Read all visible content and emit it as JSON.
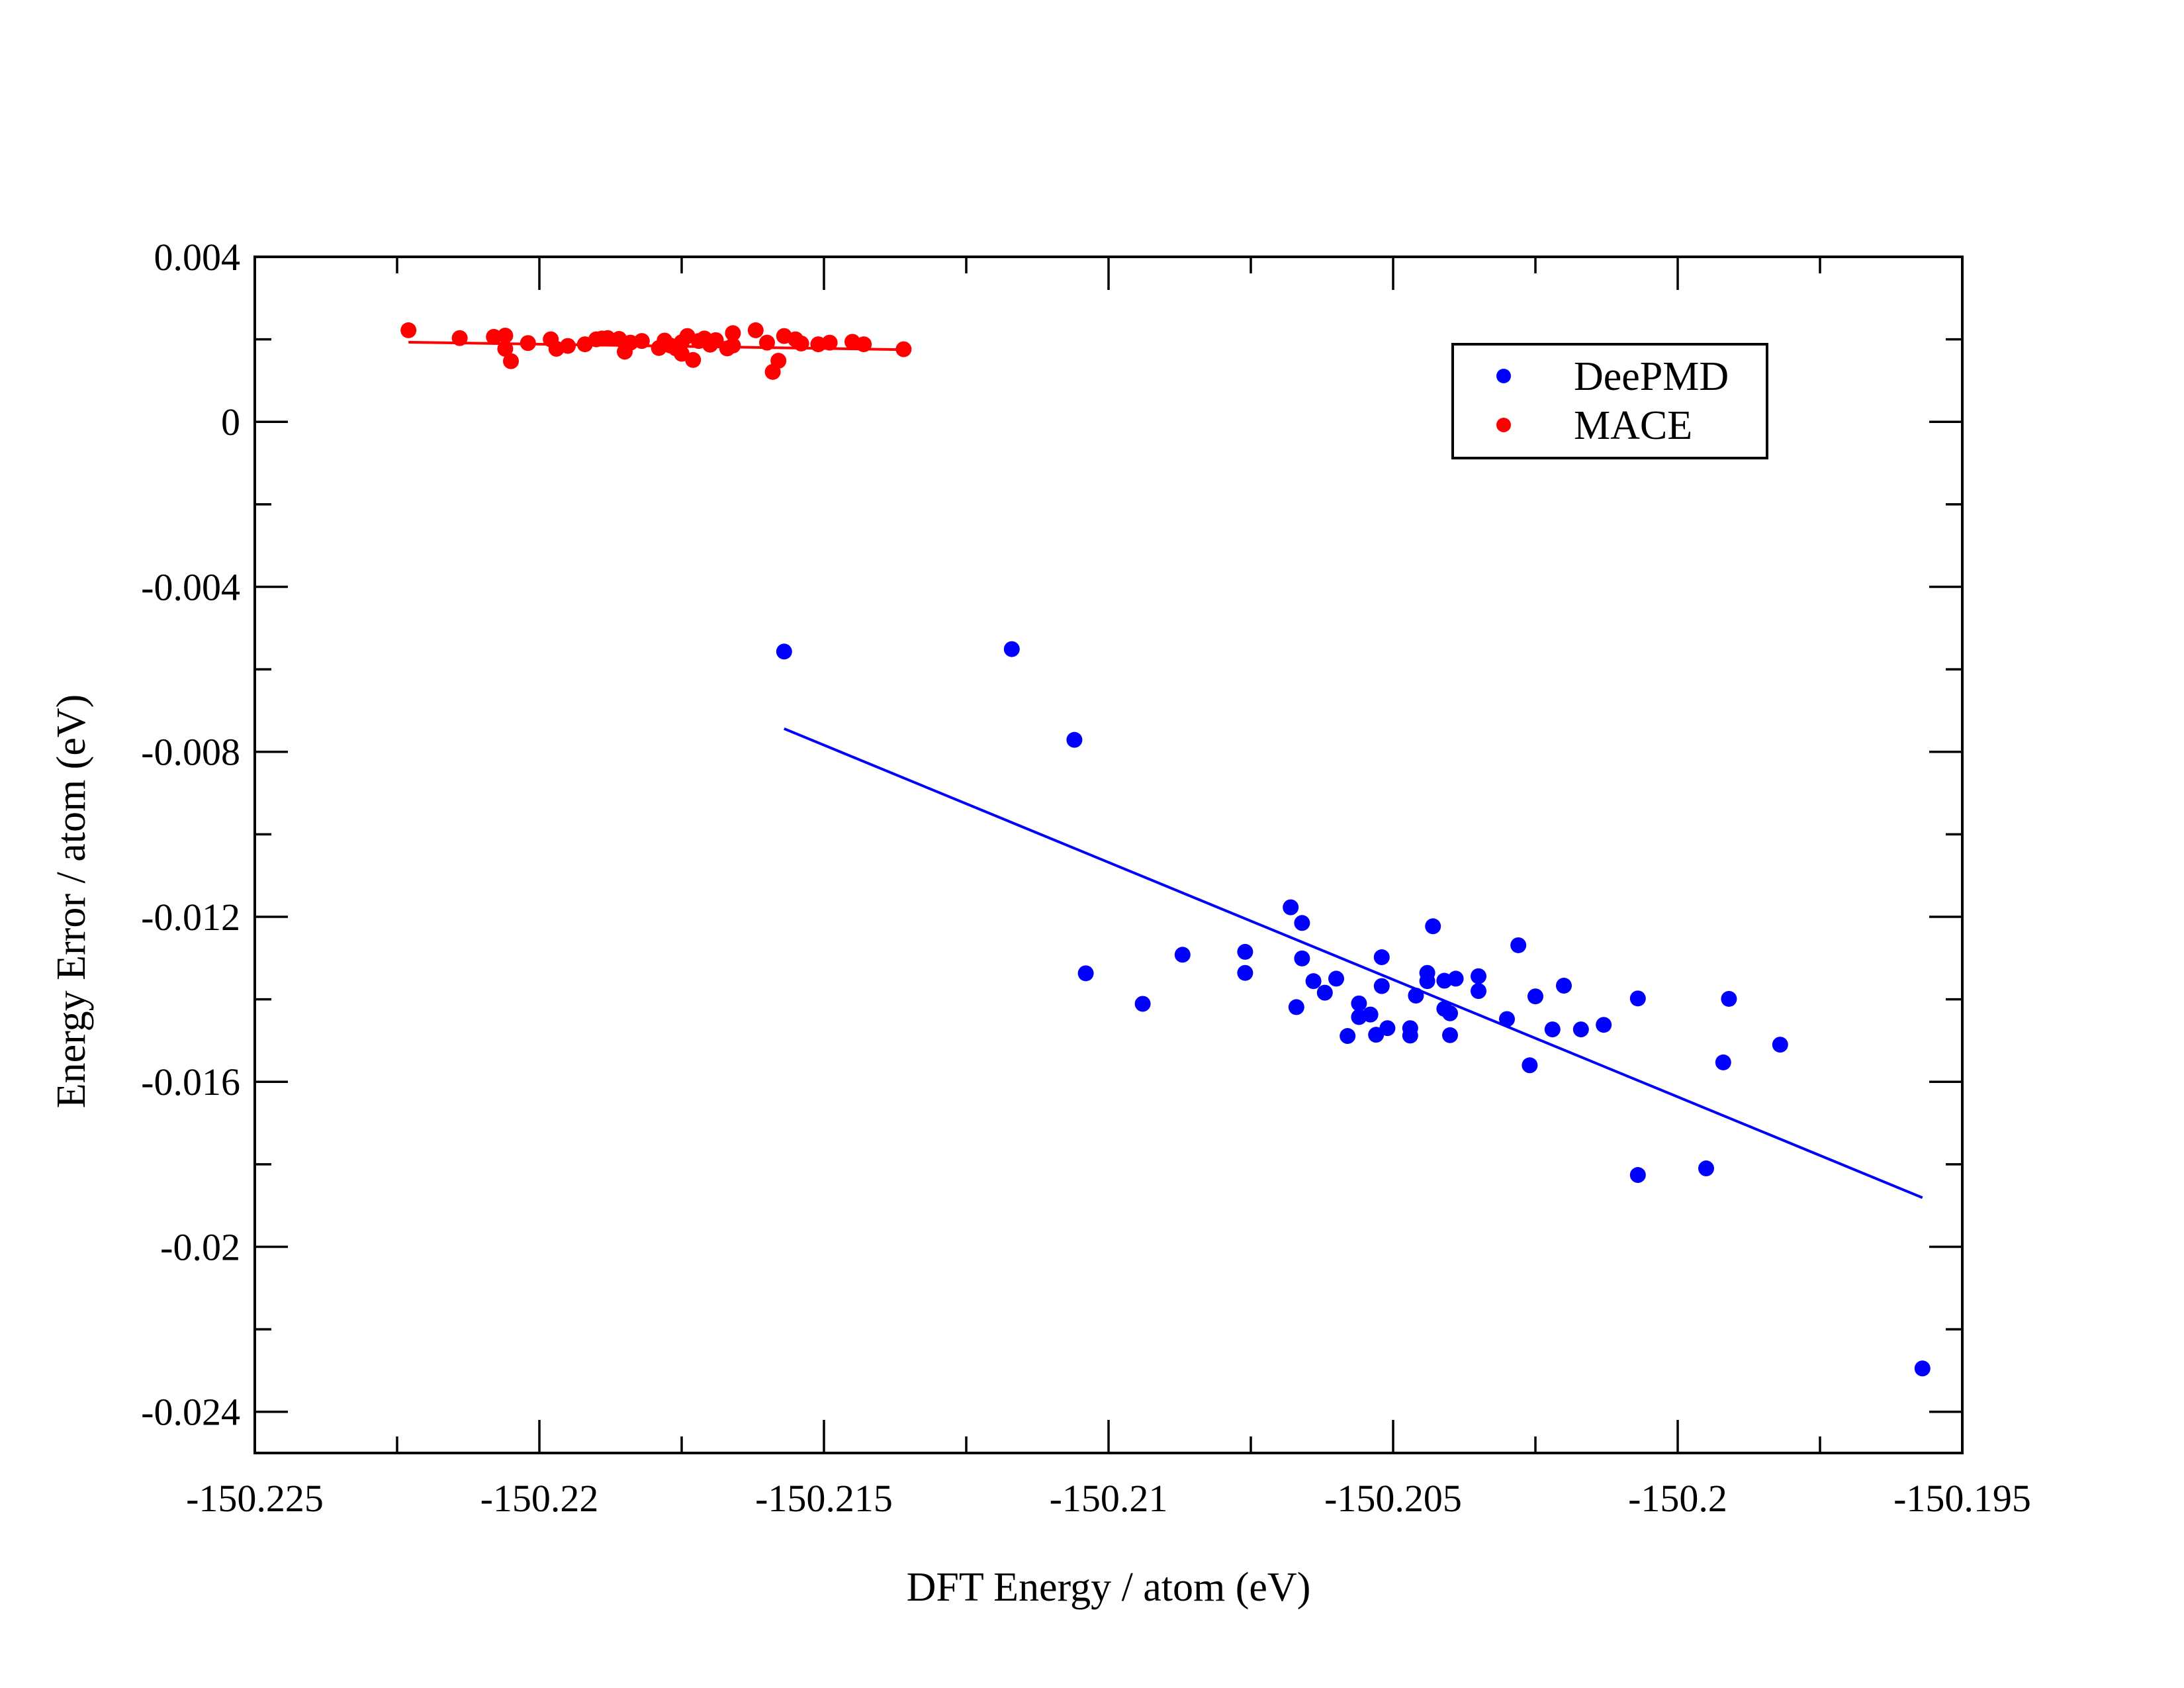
{
  "chart_data": {
    "type": "scatter",
    "title": "",
    "xlabel": "DFT Energy / atom (eV)",
    "ylabel": "Energy Error / atom (eV)",
    "xlim": [
      -150.225,
      -150.195
    ],
    "ylim": [
      -0.025,
      0.004
    ],
    "grid": false,
    "legend_position": "top-right",
    "x_ticks": [
      {
        "value": -150.225,
        "label": "-150.225"
      },
      {
        "value": -150.22,
        "label": "-150.22"
      },
      {
        "value": -150.215,
        "label": "-150.215"
      },
      {
        "value": -150.21,
        "label": "-150.21"
      },
      {
        "value": -150.205,
        "label": "-150.205"
      },
      {
        "value": -150.2,
        "label": "-150.2"
      },
      {
        "value": -150.195,
        "label": "-150.195"
      }
    ],
    "y_ticks": [
      {
        "value": 0.004,
        "label": "0.004"
      },
      {
        "value": 0,
        "label": "0"
      },
      {
        "value": -0.004,
        "label": "-0.004"
      },
      {
        "value": -0.008,
        "label": "-0.008"
      },
      {
        "value": -0.012,
        "label": "-0.012"
      },
      {
        "value": -0.016,
        "label": "-0.016"
      },
      {
        "value": -0.02,
        "label": "-0.02"
      },
      {
        "value": -0.024,
        "label": "-0.024"
      }
    ],
    "x_minor_step": 0.0025,
    "y_minor_step": 0.002,
    "series": [
      {
        "name": "DeePMD",
        "color": "#0000ff",
        "points": [
          [
            -150.2157,
            -0.00557
          ],
          [
            -150.2117,
            -0.00551
          ],
          [
            -150.2106,
            -0.00771
          ],
          [
            -150.2104,
            -0.01337
          ],
          [
            -150.2094,
            -0.01411
          ],
          [
            -150.2087,
            -0.01292
          ],
          [
            -150.2076,
            -0.01285
          ],
          [
            -150.2076,
            -0.01336
          ],
          [
            -150.2068,
            -0.01177
          ],
          [
            -150.2067,
            -0.01419
          ],
          [
            -150.2066,
            -0.01301
          ],
          [
            -150.2066,
            -0.01215
          ],
          [
            -150.2064,
            -0.01356
          ],
          [
            -150.2062,
            -0.01384
          ],
          [
            -150.206,
            -0.0135
          ],
          [
            -150.2058,
            -0.01489
          ],
          [
            -150.2056,
            -0.0141
          ],
          [
            -150.2056,
            -0.01443
          ],
          [
            -150.2054,
            -0.01437
          ],
          [
            -150.2053,
            -0.01486
          ],
          [
            -150.2052,
            -0.01368
          ],
          [
            -150.2052,
            -0.01298
          ],
          [
            -150.2051,
            -0.0147
          ],
          [
            -150.2047,
            -0.0147
          ],
          [
            -150.2047,
            -0.01488
          ],
          [
            -150.2046,
            -0.01391
          ],
          [
            -150.2044,
            -0.01336
          ],
          [
            -150.2044,
            -0.01356
          ],
          [
            -150.2043,
            -0.01223
          ],
          [
            -150.2041,
            -0.01423
          ],
          [
            -150.2041,
            -0.01355
          ],
          [
            -150.204,
            -0.01487
          ],
          [
            -150.204,
            -0.01434
          ],
          [
            -150.2039,
            -0.0135
          ],
          [
            -150.2035,
            -0.01344
          ],
          [
            -150.2035,
            -0.0138
          ],
          [
            -150.203,
            -0.01448
          ],
          [
            -150.2028,
            -0.01269
          ],
          [
            -150.2026,
            -0.0156
          ],
          [
            -150.2025,
            -0.01393
          ],
          [
            -150.2022,
            -0.01473
          ],
          [
            -150.202,
            -0.01367
          ],
          [
            -150.2017,
            -0.01473
          ],
          [
            -150.2013,
            -0.01462
          ],
          [
            -150.2007,
            -0.01398
          ],
          [
            -150.2007,
            -0.01826
          ],
          [
            -150.1995,
            -0.0181
          ],
          [
            -150.1992,
            -0.01553
          ],
          [
            -150.1991,
            -0.01399
          ],
          [
            -150.1982,
            -0.0151
          ],
          [
            -150.1957,
            -0.02295
          ]
        ],
        "fit_line": {
          "x": [
            -150.2157,
            -150.1957
          ],
          "y": [
            -0.00744,
            -0.01881
          ]
        }
      },
      {
        "name": "MACE",
        "color": "#ff0000",
        "points": [
          [
            -150.2223,
            0.00222
          ],
          [
            -150.2214,
            0.00203
          ],
          [
            -150.2208,
            0.00206
          ],
          [
            -150.2206,
            0.00209
          ],
          [
            -150.2206,
            0.00177
          ],
          [
            -150.2205,
            0.00147
          ],
          [
            -150.2202,
            0.00191
          ],
          [
            -150.2198,
            0.002
          ],
          [
            -150.2197,
            0.00177
          ],
          [
            -150.2195,
            0.00184
          ],
          [
            -150.2192,
            0.00188
          ],
          [
            -150.219,
            0.002
          ],
          [
            -150.2189,
            0.00202
          ],
          [
            -150.2188,
            0.00203
          ],
          [
            -150.2186,
            0.00201
          ],
          [
            -150.2185,
            0.0017
          ],
          [
            -150.2184,
            0.00192
          ],
          [
            -150.2182,
            0.00196
          ],
          [
            -150.2179,
            0.00179
          ],
          [
            -150.2178,
            0.00197
          ],
          [
            -150.2177,
            0.00185
          ],
          [
            -150.2176,
            0.00178
          ],
          [
            -150.2175,
            0.00165
          ],
          [
            -150.2175,
            0.00193
          ],
          [
            -150.2174,
            0.00208
          ],
          [
            -150.2173,
            0.0015
          ],
          [
            -150.2172,
            0.00196
          ],
          [
            -150.2171,
            0.00202
          ],
          [
            -150.217,
            0.00187
          ],
          [
            -150.2169,
            0.00198
          ],
          [
            -150.2167,
            0.00178
          ],
          [
            -150.2166,
            0.00185
          ],
          [
            -150.2166,
            0.00215
          ],
          [
            -150.2162,
            0.00222
          ],
          [
            -150.216,
            0.00192
          ],
          [
            -150.2159,
            0.00121
          ],
          [
            -150.2158,
            0.00148
          ],
          [
            -150.2157,
            0.00208
          ],
          [
            -150.2155,
            0.002
          ],
          [
            -150.2154,
            0.0019
          ],
          [
            -150.2151,
            0.00188
          ],
          [
            -150.2149,
            0.00192
          ],
          [
            -150.2145,
            0.00194
          ],
          [
            -150.2143,
            0.00188
          ],
          [
            -150.2136,
            0.00176
          ]
        ],
        "fit_line": {
          "x": [
            -150.2223,
            -150.2136
          ],
          "y": [
            0.00193,
            0.00175
          ]
        }
      }
    ]
  }
}
